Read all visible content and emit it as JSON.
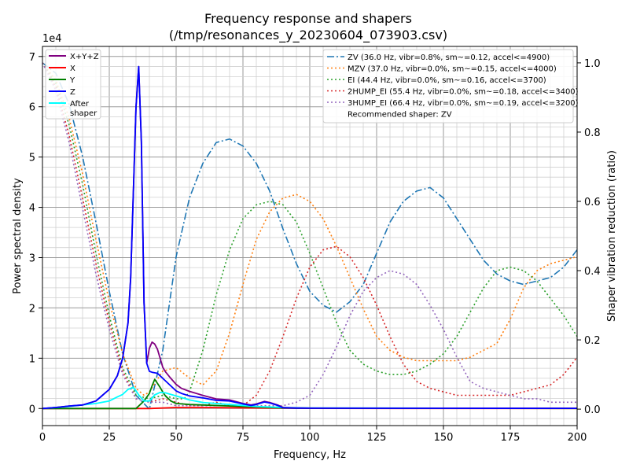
{
  "chart_data": {
    "type": "line",
    "title": "Frequency response and shapers",
    "subtitle": "(/tmp/resonances_y_20230604_073903.csv)",
    "xlabel": "Frequency, Hz",
    "ylabel": "Power spectral density",
    "y2label": "Shaper vibration reduction (ratio)",
    "y_offset_label": "1e4",
    "xlim": [
      0,
      200
    ],
    "ylim": [
      -3400,
      72000
    ],
    "y2lim": [
      -0.0475,
      1.0475
    ],
    "x_ticks": [
      "0",
      "25",
      "50",
      "75",
      "100",
      "125",
      "150",
      "175",
      "200"
    ],
    "y_ticks": [
      "0",
      "1",
      "2",
      "3",
      "4",
      "5",
      "6",
      "7"
    ],
    "y2_ticks": [
      "0.0",
      "0.2",
      "0.4",
      "0.6",
      "0.8",
      "1.0"
    ],
    "grid": true,
    "psd_legend": [
      {
        "name": "X+Y+Z",
        "color": "#800080"
      },
      {
        "name": "X",
        "color": "#ff0000"
      },
      {
        "name": "Y",
        "color": "#008000"
      },
      {
        "name": "Z",
        "color": "#0000ff"
      },
      {
        "name": "After\nshaper",
        "color": "#00ffff"
      }
    ],
    "shaper_legend": [
      {
        "name": "ZV (36.0 Hz, vibr=0.8%, sm~=0.12, accel<=4900)",
        "color": "#1f77b4",
        "dash": "dashdot"
      },
      {
        "name": "MZV (37.0 Hz, vibr=0.0%, sm~=0.15, accel<=4000)",
        "color": "#ff7f0e",
        "dash": "dotted"
      },
      {
        "name": "EI (44.4 Hz, vibr=0.0%, sm~=0.16, accel<=3700)",
        "color": "#2ca02c",
        "dash": "dotted"
      },
      {
        "name": "2HUMP_EI (55.4 Hz, vibr=0.0%, sm~=0.18, accel<=3400)",
        "color": "#d62728",
        "dash": "dotted"
      },
      {
        "name": "3HUMP_EI (66.4 Hz, vibr=0.0%, sm~=0.19, accel<=3200)",
        "color": "#9467bd",
        "dash": "dotted"
      },
      {
        "name": "Recommended shaper: ZV",
        "color": "none",
        "dash": "none"
      }
    ],
    "psd_series": [
      {
        "name": "X+Y+Z",
        "color": "#800080",
        "axis": "left",
        "x": [
          0,
          5,
          10,
          15,
          20,
          25,
          28,
          30,
          32,
          33,
          34,
          35,
          36,
          37,
          38,
          39,
          40,
          41,
          42,
          43,
          44,
          45,
          46,
          48,
          50,
          52,
          55,
          60,
          65,
          70,
          75,
          78,
          80,
          83,
          85,
          88,
          90,
          95,
          100,
          150,
          200
        ],
        "y": [
          0,
          200,
          500,
          700,
          1500,
          3800,
          6500,
          10000,
          17000,
          26000,
          43000,
          60000,
          68000,
          53000,
          21000,
          9000,
          12000,
          13200,
          12800,
          11800,
          10000,
          8200,
          7300,
          6000,
          4800,
          4000,
          3400,
          2600,
          1900,
          1700,
          1000,
          700,
          900,
          1400,
          1200,
          700,
          200,
          100,
          80,
          50,
          40
        ]
      },
      {
        "name": "X",
        "color": "#ff0000",
        "axis": "left",
        "x": [
          0,
          40,
          50,
          60,
          70,
          80,
          90,
          100,
          150,
          200
        ],
        "y": [
          0,
          0,
          200,
          200,
          150,
          100,
          50,
          30,
          10,
          5
        ]
      },
      {
        "name": "Y",
        "color": "#008000",
        "axis": "left",
        "x": [
          0,
          35,
          38,
          40,
          41,
          42,
          43,
          44,
          45,
          46,
          48,
          50,
          55,
          60,
          70,
          80,
          90,
          100,
          200
        ],
        "y": [
          0,
          0,
          1500,
          3000,
          4500,
          5800,
          5000,
          4200,
          3300,
          2500,
          1500,
          1000,
          800,
          700,
          500,
          300,
          100,
          50,
          10
        ]
      },
      {
        "name": "Z",
        "color": "#0000ff",
        "axis": "left",
        "x": [
          0,
          5,
          10,
          15,
          20,
          25,
          28,
          30,
          32,
          33,
          34,
          35,
          36,
          37,
          38,
          39,
          40,
          41,
          42,
          43,
          44,
          45,
          46,
          48,
          50,
          52,
          55,
          60,
          65,
          70,
          75,
          78,
          80,
          83,
          85,
          88,
          90,
          95,
          100,
          150,
          200
        ],
        "y": [
          0,
          200,
          500,
          700,
          1500,
          3800,
          6500,
          10000,
          17000,
          26000,
          43000,
          60000,
          68000,
          53000,
          21000,
          9000,
          7400,
          7200,
          7100,
          7000,
          6500,
          6000,
          5500,
          4500,
          3500,
          3000,
          2500,
          2100,
          1600,
          1500,
          900,
          600,
          800,
          1300,
          1100,
          600,
          150,
          80,
          60,
          40,
          30
        ]
      },
      {
        "name": "After\nshaper",
        "color": "#00ffff",
        "axis": "left",
        "x": [
          0,
          10,
          20,
          25,
          28,
          30,
          32,
          33,
          34,
          35,
          36,
          38,
          40,
          42,
          44,
          46,
          48,
          50,
          55,
          60,
          70,
          80,
          90,
          100,
          150,
          200
        ],
        "y": [
          0,
          400,
          1000,
          1500,
          2300,
          2800,
          3800,
          4000,
          4200,
          3500,
          2700,
          1500,
          1500,
          2700,
          3200,
          3100,
          2800,
          2500,
          1700,
          1200,
          800,
          400,
          200,
          100,
          50,
          30
        ]
      }
    ],
    "shaper_series": [
      {
        "name": "ZV",
        "color": "#1f77b4",
        "dash": "dashdot",
        "axis": "right",
        "x": [
          0,
          5,
          10,
          15,
          20,
          25,
          30,
          35,
          40,
          45,
          50,
          55,
          60,
          65,
          70,
          75,
          80,
          85,
          90,
          95,
          100,
          105,
          110,
          115,
          120,
          125,
          130,
          135,
          140,
          145,
          150,
          155,
          160,
          165,
          170,
          175,
          180,
          185,
          190,
          195,
          200
        ],
        "y": [
          1.0,
          0.97,
          0.88,
          0.73,
          0.54,
          0.34,
          0.16,
          0.04,
          0.0,
          0.17,
          0.44,
          0.61,
          0.71,
          0.77,
          0.78,
          0.76,
          0.71,
          0.63,
          0.52,
          0.42,
          0.34,
          0.3,
          0.28,
          0.31,
          0.36,
          0.45,
          0.54,
          0.6,
          0.63,
          0.64,
          0.61,
          0.55,
          0.49,
          0.43,
          0.39,
          0.37,
          0.36,
          0.37,
          0.38,
          0.41,
          0.46
        ]
      },
      {
        "name": "MZV",
        "color": "#ff7f0e",
        "dash": "dotted",
        "axis": "right",
        "x": [
          0,
          5,
          10,
          15,
          20,
          25,
          30,
          35,
          38,
          40,
          45,
          50,
          55,
          60,
          65,
          70,
          75,
          80,
          85,
          90,
          95,
          100,
          105,
          110,
          115,
          120,
          125,
          130,
          135,
          140,
          145,
          150,
          155,
          160,
          165,
          170,
          175,
          180,
          185,
          190,
          195,
          200
        ],
        "y": [
          1.0,
          0.95,
          0.84,
          0.68,
          0.49,
          0.31,
          0.16,
          0.06,
          0.04,
          0.05,
          0.11,
          0.12,
          0.09,
          0.07,
          0.11,
          0.22,
          0.36,
          0.49,
          0.57,
          0.61,
          0.62,
          0.6,
          0.55,
          0.47,
          0.38,
          0.29,
          0.21,
          0.17,
          0.15,
          0.14,
          0.14,
          0.14,
          0.14,
          0.15,
          0.17,
          0.19,
          0.26,
          0.35,
          0.4,
          0.42,
          0.43,
          0.44
        ]
      },
      {
        "name": "EI",
        "color": "#2ca02c",
        "dash": "dotted",
        "axis": "right",
        "x": [
          0,
          5,
          10,
          15,
          20,
          25,
          30,
          35,
          40,
          45,
          50,
          53,
          55,
          60,
          65,
          70,
          75,
          80,
          85,
          90,
          95,
          100,
          105,
          110,
          115,
          120,
          125,
          130,
          135,
          140,
          145,
          150,
          155,
          160,
          165,
          170,
          175,
          180,
          185,
          190,
          195,
          200
        ],
        "y": [
          1.0,
          0.94,
          0.82,
          0.65,
          0.45,
          0.27,
          0.12,
          0.04,
          0.03,
          0.04,
          0.03,
          0.03,
          0.05,
          0.17,
          0.33,
          0.46,
          0.55,
          0.59,
          0.6,
          0.59,
          0.54,
          0.45,
          0.35,
          0.25,
          0.17,
          0.13,
          0.11,
          0.1,
          0.1,
          0.11,
          0.13,
          0.16,
          0.21,
          0.28,
          0.35,
          0.4,
          0.41,
          0.4,
          0.37,
          0.32,
          0.27,
          0.21
        ]
      },
      {
        "name": "2HUMP_EI",
        "color": "#d62728",
        "dash": "dotted",
        "axis": "right",
        "x": [
          0,
          5,
          10,
          15,
          20,
          25,
          30,
          35,
          40,
          45,
          50,
          55,
          60,
          65,
          70,
          75,
          80,
          85,
          90,
          95,
          100,
          105,
          110,
          115,
          120,
          125,
          130,
          135,
          140,
          145,
          150,
          155,
          160,
          165,
          170,
          175,
          180,
          185,
          190,
          195,
          200
        ],
        "y": [
          1.0,
          0.93,
          0.79,
          0.61,
          0.42,
          0.25,
          0.11,
          0.03,
          0.02,
          0.03,
          0.02,
          0.01,
          0.01,
          0.02,
          0.01,
          0.01,
          0.04,
          0.11,
          0.21,
          0.32,
          0.41,
          0.46,
          0.47,
          0.44,
          0.38,
          0.3,
          0.21,
          0.13,
          0.08,
          0.06,
          0.05,
          0.04,
          0.04,
          0.04,
          0.04,
          0.04,
          0.05,
          0.06,
          0.07,
          0.1,
          0.15
        ]
      },
      {
        "name": "3HUMP_EI",
        "color": "#9467bd",
        "dash": "dotted",
        "axis": "right",
        "x": [
          0,
          5,
          10,
          15,
          20,
          25,
          30,
          35,
          40,
          45,
          50,
          55,
          60,
          65,
          70,
          75,
          80,
          85,
          90,
          95,
          100,
          105,
          110,
          115,
          120,
          125,
          130,
          135,
          140,
          145,
          150,
          155,
          160,
          165,
          170,
          175,
          180,
          185,
          190,
          195,
          200
        ],
        "y": [
          1.0,
          0.92,
          0.77,
          0.58,
          0.39,
          0.23,
          0.1,
          0.03,
          0.02,
          0.02,
          0.01,
          0.01,
          0.01,
          0.01,
          0.01,
          0.01,
          0.01,
          0.01,
          0.01,
          0.02,
          0.04,
          0.1,
          0.18,
          0.27,
          0.34,
          0.38,
          0.4,
          0.39,
          0.36,
          0.3,
          0.23,
          0.15,
          0.08,
          0.06,
          0.05,
          0.04,
          0.03,
          0.03,
          0.02,
          0.02,
          0.02
        ]
      }
    ]
  }
}
